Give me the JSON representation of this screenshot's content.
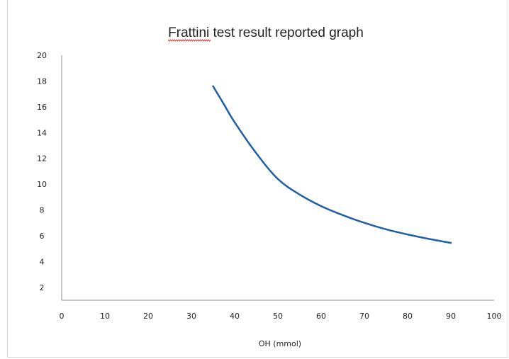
{
  "chart_data": {
    "type": "line",
    "title": "Frattini test result reported graph",
    "xlabel": "OH (mmol)",
    "ylabel": "",
    "xlim": [
      0,
      100
    ],
    "ylim": [
      1,
      20
    ],
    "x_ticks": [
      0,
      10,
      20,
      30,
      40,
      50,
      60,
      70,
      80,
      90,
      100
    ],
    "y_ticks": [
      2,
      4,
      6,
      8,
      10,
      12,
      14,
      16,
      18,
      20
    ],
    "grid": false,
    "legend": "none",
    "series": [
      {
        "color": "#1f5fa6",
        "x": [
          35,
          37.5,
          40,
          45,
          50,
          55,
          60,
          65,
          70,
          75,
          80,
          85,
          90
        ],
        "y": [
          17.6,
          16.2,
          14.8,
          12.4,
          10.4,
          9.2,
          8.3,
          7.6,
          7.0,
          6.5,
          6.1,
          5.75,
          5.45
        ]
      }
    ]
  }
}
